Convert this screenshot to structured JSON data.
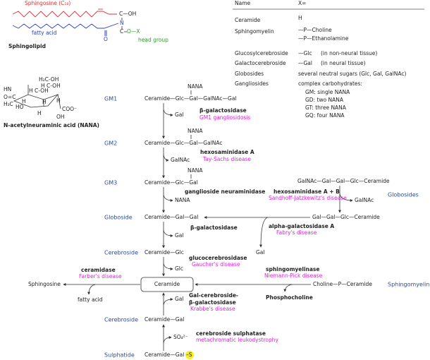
{
  "sphingolipid": {
    "sphingosine": "Sphingosine (C₁₈)",
    "fatty_acid": "fatty acid",
    "head_group": "head group",
    "title": "Sphingolipid",
    "atoms": [
      "C—OH",
      "N",
      "C",
      "O—X",
      "O"
    ]
  },
  "nana": {
    "title": "N-acetylneuraminic acid (NANA)",
    "atoms": [
      "H₂C-OH",
      "H C-OH",
      "HN",
      "H C-OH",
      "O=C",
      "H₃C",
      "HO",
      "H",
      "H",
      "H",
      "COO⁻",
      "OH",
      "H"
    ]
  },
  "table": {
    "header": [
      "Name",
      "X="
    ],
    "rows": [
      {
        "name": "Ceramide",
        "x": [
          "H"
        ]
      },
      {
        "name": "Sphingomyelin",
        "x": [
          "—P—Choline",
          "—P—Ethanolamine"
        ]
      },
      {
        "name": "Glucosylcerebroside",
        "x": [
          "—Glc",
          "(in non-neural tissue)"
        ]
      },
      {
        "name": "Galactocerebroside",
        "x": [
          "—Gal",
          "(in neural tissue)"
        ]
      },
      {
        "name": "Globosides",
        "x": [
          "several neutral sugars (Glc, Gal, GalNAc)"
        ]
      },
      {
        "name": "Gangliosides",
        "x": [
          "complex carbohydrates:",
          "GM: single NANA",
          "GD: two NANA",
          "GT: three NANA",
          "GQ: four NANA"
        ]
      }
    ]
  },
  "pathway": {
    "levels": [
      {
        "label": "GM1",
        "compound": "Ceramide—Glc—Gal—GalNAc—Gal",
        "side": "NANA"
      },
      {
        "label": "GM2",
        "compound": "Ceramide—Glc—Gal—GalNAc",
        "side": "NANA"
      },
      {
        "label": "GM3",
        "compound": "Ceramide—Glc—Gal",
        "side": "NANA"
      },
      {
        "label": "Globoside",
        "compound": "Ceramide—Gal—Gal"
      },
      {
        "label": "Cerebroside",
        "compound": "Ceramide—Glc"
      },
      {
        "label": "Cerebroside",
        "compound": "Ceramide—Gal"
      },
      {
        "label": "Sulphatide",
        "compound": "Ceramide—Gal",
        "highlight": "–S"
      }
    ],
    "ceramide": "Ceramide",
    "steps": [
      {
        "product": "Gal",
        "enzyme": [
          "β-galactosidase"
        ],
        "disease": "GM1 gangliosidosis"
      },
      {
        "product": "GalNAc",
        "enzyme": [
          "hexosaminidase A"
        ],
        "disease": "Tay-Sachs disease"
      },
      {
        "product": "NANA",
        "enzyme": [
          "ganglioside neuraminidase"
        ]
      },
      {
        "product": "Gal",
        "enzyme": [
          "β-galactosidase"
        ]
      },
      {
        "product": "Glc",
        "enzyme": [
          "glucocerebrosidase"
        ],
        "disease": "Gaucher's disease"
      },
      {
        "product": "Gal",
        "enzyme": [
          "Gal-cerebroside-",
          "β-galactosidase"
        ],
        "disease": "Krabbe's disease"
      },
      {
        "product": "SO₄²⁻",
        "enzyme": [
          "cerebroside sulphatase"
        ],
        "disease": "metachromatic leukodystrophy"
      }
    ],
    "globosides": {
      "label": "Globosides",
      "compound": "GalNAc—Gal—Gal—Glc—Ceramide",
      "enzyme": "hexosaminidase A + B",
      "disease": "Sandhoff-Jatzkewitz's disease",
      "product": "GalNAc"
    },
    "globoside_hydrolysis": {
      "compound": "Gal—Gal—Glc—Ceramide",
      "enzyme": "alpha-galactosidase A",
      "disease": "Fabry's disease",
      "product": "Gal"
    },
    "sphingomyelin": {
      "label": "Sphingomyelin",
      "compound": "Choline—P—Ceramide",
      "enzyme": "sphingomyelinase",
      "disease": "Niemann-Pick disease",
      "product": "Phosphocholine"
    },
    "ceramidase": {
      "enzyme": "ceramidase",
      "disease": "Farber's disease",
      "product": "Sphingosine",
      "side": "fatty acid"
    }
  }
}
